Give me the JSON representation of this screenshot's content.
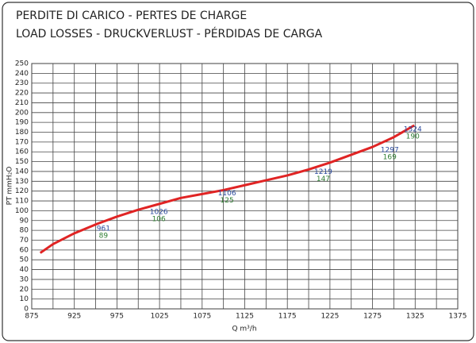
{
  "chart_data": {
    "type": "line",
    "title": "PERDITE DI CARICO - PERTES DE CHARGE",
    "subtitle": "LOAD LOSSES - DRUCKVERLUST - PÉRDIDAS DE CARGA",
    "x_label": "Q m³/h",
    "y_label": "PT mmH₂O",
    "x": [
      885,
      900,
      925,
      950,
      975,
      1000,
      1025,
      1050,
      1075,
      1100,
      1125,
      1150,
      1175,
      1200,
      1225,
      1250,
      1275,
      1300,
      1324
    ],
    "series": [
      {
        "color": "#e02424",
        "values": [
          57,
          66,
          77,
          86,
          94,
          101,
          107,
          113,
          117,
          121,
          126,
          131,
          136,
          142,
          149,
          157,
          165,
          175,
          187
        ]
      }
    ],
    "points": {
      "x": [
        961,
        1026,
        1106,
        1219,
        1297,
        1324
      ],
      "y": [
        89,
        106,
        125,
        147,
        169,
        190
      ],
      "x_color": "#2b4a9c",
      "y_color": "#2e7d32"
    },
    "xlim": [
      875,
      1375
    ],
    "ylim": [
      0,
      250
    ],
    "xticks": [
      875,
      925,
      975,
      1025,
      1075,
      1125,
      1175,
      1225,
      1275,
      1325,
      1375
    ],
    "x_minor_grid": [
      900,
      950,
      1000,
      1050,
      1100,
      1150,
      1200,
      1250,
      1300,
      1350
    ],
    "yticks": [
      0,
      10,
      20,
      30,
      40,
      50,
      60,
      70,
      80,
      90,
      100,
      110,
      120,
      130,
      140,
      150,
      160,
      170,
      180,
      190,
      200,
      210,
      220,
      230,
      240,
      250
    ],
    "grid": true
  }
}
